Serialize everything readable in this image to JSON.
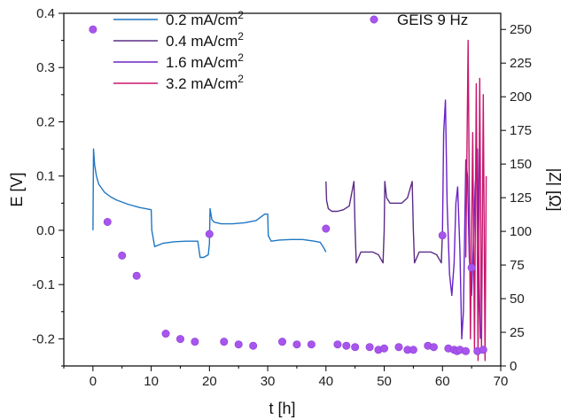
{
  "chart_data": {
    "type": "line",
    "title": "",
    "xlabel": "t [h]",
    "ylabel": "E [V]",
    "y2label": "|Z| [Ω]",
    "xlim": [
      -5,
      70
    ],
    "ylim": [
      -0.25,
      0.4
    ],
    "y2lim": [
      0,
      262
    ],
    "xticks": [
      0,
      10,
      20,
      30,
      40,
      50,
      60,
      70
    ],
    "yticks": [
      -0.2,
      -0.1,
      0.0,
      0.1,
      0.2,
      0.3,
      0.4
    ],
    "ytick_labels": [
      "-0.2",
      "-0.1",
      "0.0",
      "0.1",
      "0.2",
      "0.3",
      "0.4"
    ],
    "y2ticks": [
      0,
      25,
      50,
      75,
      100,
      125,
      150,
      175,
      200,
      225,
      250
    ],
    "grid": false,
    "legend_position": "top",
    "series": [
      {
        "name": "0.2 mA/cm",
        "superscript": "2",
        "color": "#1f77c4",
        "x": [
          0.0,
          0.1,
          0.3,
          0.6,
          1.0,
          2.0,
          3.0,
          4.0,
          6.0,
          8.0,
          10.0,
          10.1,
          10.6,
          12.0,
          14.0,
          16.0,
          18.0,
          18.4,
          19.0,
          19.8,
          20.0,
          20.1,
          20.4,
          20.8,
          22.0,
          24.0,
          26.0,
          28.0,
          29.5,
          30.0,
          30.1,
          30.6,
          32.0,
          34.0,
          36.0,
          38.0,
          39.0,
          39.6,
          40.0
        ],
        "y": [
          0.0,
          0.15,
          0.12,
          0.1,
          0.085,
          0.07,
          0.062,
          0.056,
          0.048,
          0.042,
          0.038,
          0.0,
          -0.03,
          -0.024,
          -0.021,
          -0.02,
          -0.02,
          -0.05,
          -0.05,
          -0.045,
          -0.025,
          0.04,
          0.02,
          0.015,
          0.012,
          0.012,
          0.014,
          0.018,
          0.03,
          0.03,
          -0.01,
          -0.02,
          -0.018,
          -0.017,
          -0.017,
          -0.02,
          -0.022,
          -0.032,
          -0.04
        ]
      },
      {
        "name": "0.4 mA/cm",
        "superscript": "2",
        "color": "#5b2b86",
        "x": [
          40.0,
          40.1,
          40.4,
          41.0,
          42.0,
          43.0,
          44.0,
          44.8,
          45.0,
          45.2,
          46.0,
          47.0,
          48.0,
          49.0,
          49.8,
          50.0,
          50.1,
          50.4,
          51.0,
          52.0,
          53.0,
          54.0,
          54.8,
          55.0,
          55.2,
          56.0,
          57.0,
          58.0,
          59.0,
          59.8,
          60.0
        ],
        "y": [
          0.09,
          0.055,
          0.04,
          0.035,
          0.035,
          0.038,
          0.045,
          0.09,
          0.0,
          -0.06,
          -0.04,
          -0.04,
          -0.04,
          -0.045,
          -0.06,
          0.0,
          0.09,
          0.06,
          0.05,
          0.05,
          0.05,
          0.06,
          0.09,
          0.0,
          -0.06,
          -0.04,
          -0.04,
          -0.04,
          -0.045,
          -0.06,
          0.0
        ]
      },
      {
        "name": "1.6 mA/cm",
        "superscript": "2",
        "color": "#6a22c8",
        "x": [
          60.0,
          60.2,
          60.5,
          60.8,
          61.2,
          61.6,
          62.0,
          62.3,
          62.6,
          63.0,
          63.3,
          63.6,
          64.0,
          64.3,
          64.6,
          65.0,
          65.3,
          65.6,
          66.0,
          66.3,
          66.5
        ],
        "y": [
          0.0,
          0.18,
          0.24,
          0.05,
          -0.08,
          -0.12,
          -0.06,
          0.05,
          0.08,
          -0.04,
          -0.2,
          -0.15,
          0.13,
          0.1,
          -0.05,
          -0.12,
          -0.03,
          0.08,
          0.15,
          -0.1,
          -0.2
        ]
      },
      {
        "name": "3.2 mA/cm",
        "superscript": "2",
        "color": "#c8166e",
        "x": [
          64.0,
          64.4,
          64.8,
          65.2,
          65.5,
          65.8,
          66.1,
          66.4,
          66.7,
          67.0,
          67.3,
          67.5
        ],
        "y": [
          -0.05,
          0.35,
          -0.2,
          0.18,
          -0.22,
          0.27,
          -0.24,
          0.28,
          -0.22,
          0.25,
          -0.24,
          0.1
        ]
      }
    ],
    "scatter": {
      "name": "GEIS 9 Hz",
      "color": "#a855ee",
      "axis": "right",
      "x": [
        0.0,
        2.5,
        5.0,
        7.5,
        12.5,
        15.0,
        17.5,
        20.0,
        22.5,
        25.0,
        27.5,
        32.5,
        35.0,
        37.5,
        40.0,
        42.0,
        43.5,
        45.0,
        47.5,
        49.0,
        50.0,
        52.5,
        54.0,
        55.0,
        57.5,
        58.5,
        60.0,
        61.0,
        62.0,
        62.5,
        63.0,
        64.0,
        65.0,
        66.0,
        67.0
      ],
      "y": [
        250,
        107,
        82,
        67,
        24,
        20,
        18,
        98,
        18,
        16,
        15,
        18,
        16,
        16,
        102,
        16,
        15,
        14,
        14,
        12,
        13,
        14,
        12,
        12,
        15,
        14,
        97,
        13,
        12,
        11,
        12,
        11,
        73,
        11,
        12
      ]
    }
  }
}
